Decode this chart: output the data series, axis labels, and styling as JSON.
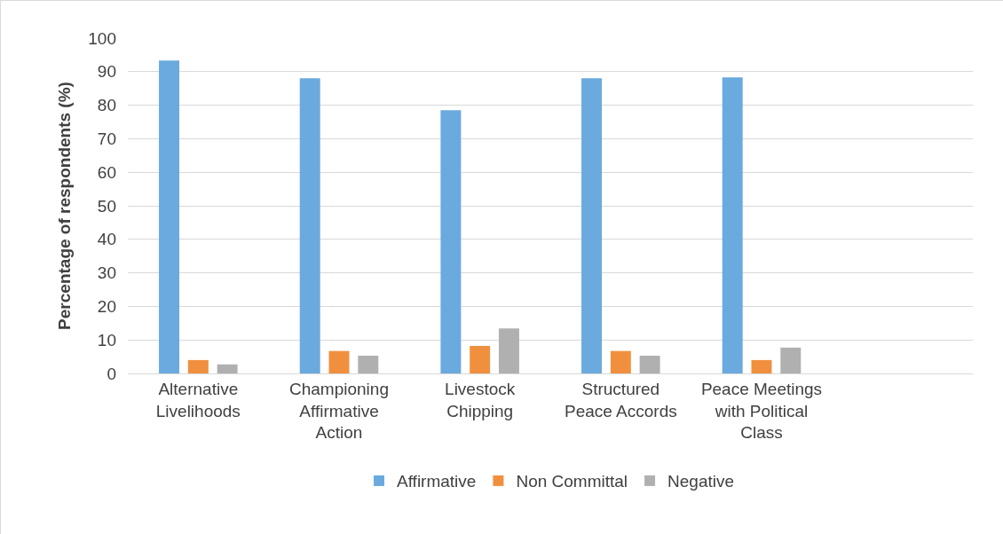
{
  "chart_data": {
    "type": "bar",
    "ylabel": "Percentage of respondents (%)",
    "categories": [
      "Alternative Livelihoods",
      "Championing Affirmative Action",
      "Livestock Chipping",
      "Structured Peace Accords",
      "Peace Meetings with Political Class",
      null
    ],
    "series": [
      {
        "name": "Affirmative",
        "color": "#6aaade",
        "values": [
          93.3,
          88,
          78.5,
          88,
          88.3,
          null
        ]
      },
      {
        "name": "Non Committal",
        "color": "#f0903f",
        "values": [
          4,
          6.7,
          8.2,
          6.7,
          4,
          null
        ]
      },
      {
        "name": "Negative",
        "color": "#b0b0b0",
        "values": [
          2.7,
          5.3,
          13.4,
          5.3,
          7.7,
          null
        ]
      }
    ],
    "ylim": [
      0,
      100
    ],
    "yticks": [
      0,
      10,
      20,
      30,
      40,
      50,
      60,
      70,
      80,
      90,
      100
    ],
    "grid": "y",
    "legend": "bottom"
  }
}
